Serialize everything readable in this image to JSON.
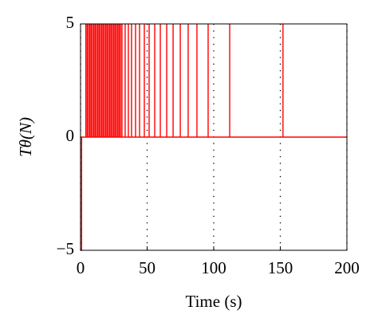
{
  "chart_data": {
    "type": "line",
    "xlabel": "Time (s)",
    "ylabel": "Tθ(N)",
    "x": [
      0,
      0.8,
      0.8,
      4,
      4,
      4,
      5,
      5,
      5,
      6,
      6,
      6,
      7,
      7,
      7,
      8,
      8,
      8,
      9,
      9,
      9,
      10,
      10,
      10,
      11,
      11,
      11,
      12,
      12,
      12,
      13,
      13,
      13,
      14,
      14,
      14,
      15,
      15,
      15,
      16,
      16,
      16,
      17,
      17,
      17,
      18,
      18,
      18,
      19,
      19,
      19,
      20,
      20,
      20,
      21,
      21,
      21,
      22,
      22,
      22,
      23,
      23,
      23,
      24,
      24,
      24,
      25,
      25,
      25,
      26,
      26,
      26,
      27,
      27,
      27,
      28,
      28,
      28,
      29,
      29,
      29,
      30,
      30,
      30,
      31.1,
      31.1,
      31.1,
      33.5,
      33.5,
      33.5,
      35.9,
      35.9,
      35.9,
      38.3,
      38.3,
      38.3,
      41.3,
      41.3,
      41.3,
      44.3,
      44.3,
      44.3,
      47.9,
      47.9,
      47.9,
      51.5,
      51.5,
      51.5,
      55.7,
      55.7,
      55.7,
      59.9,
      59.9,
      59.9,
      64.7,
      64.7,
      64.7,
      69.5,
      69.5,
      69.5,
      74.9,
      74.9,
      74.9,
      80.8,
      80.8,
      80.8,
      87.4,
      87.4,
      87.4,
      95.8,
      95.8,
      95.8,
      112,
      112,
      112,
      152,
      152,
      152,
      200
    ],
    "series": [
      {
        "name": "Tθ",
        "color": "#ff0000",
        "values": [
          -5,
          -5,
          0,
          0,
          5,
          0,
          0,
          5,
          0,
          0,
          5,
          0,
          0,
          5,
          0,
          0,
          5,
          0,
          0,
          5,
          0,
          0,
          5,
          0,
          0,
          5,
          0,
          0,
          5,
          0,
          0,
          5,
          0,
          0,
          5,
          0,
          0,
          5,
          0,
          0,
          5,
          0,
          0,
          5,
          0,
          0,
          5,
          0,
          0,
          5,
          0,
          0,
          5,
          0,
          0,
          5,
          0,
          0,
          5,
          0,
          0,
          5,
          0,
          0,
          5,
          0,
          0,
          5,
          0,
          0,
          5,
          0,
          0,
          5,
          0,
          0,
          5,
          0,
          0,
          5,
          0,
          0,
          5,
          0,
          0,
          5,
          0,
          0,
          5,
          0,
          0,
          5,
          0,
          0,
          5,
          0,
          0,
          5,
          0,
          0,
          5,
          0,
          0,
          5,
          0,
          0,
          5,
          0,
          0,
          5,
          0,
          0,
          5,
          0,
          0,
          5,
          0,
          0,
          5,
          0,
          0,
          5,
          0,
          0,
          5,
          0,
          0,
          5,
          0,
          0,
          5,
          0,
          0,
          5,
          0,
          0,
          5,
          0,
          0
        ]
      }
    ],
    "xlim": [
      0,
      200
    ],
    "xticks": [
      0,
      50,
      100,
      150,
      200
    ],
    "ylim": [
      -5,
      5
    ],
    "yticks": [
      {
        "value": -5,
        "label": "−5"
      },
      0,
      5
    ],
    "grid": "x"
  }
}
